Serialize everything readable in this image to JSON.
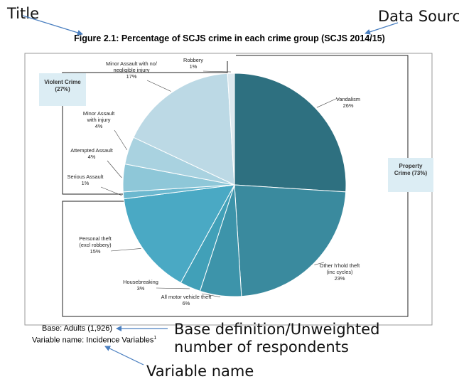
{
  "annotations": {
    "title_label": "Title",
    "data_source_label": "Data Source",
    "base_label_line1": "Base definition/Unweighted",
    "base_label_line2": "number of respondents",
    "variable_label": "Variable name"
  },
  "figure_title": "Figure 2.1: Percentage of SCJS crime in each crime group (SCJS 2014/15)",
  "footer": {
    "base": "Base: Adults (1,926)",
    "variable_name": "Variable name: Incidence Variables",
    "footnote_marker": "1"
  },
  "colors": {
    "annotation_arrow": "#4a7fc0",
    "box_fill": "#dcedf4",
    "frame": "#222222"
  },
  "chart_data": {
    "type": "pie",
    "title": "Figure 2.1: Percentage of SCJS crime in each crime group (SCJS 2014/15)",
    "unit": "%",
    "start": "12 o'clock",
    "direction": "clockwise",
    "slices": [
      {
        "label": [
          "Vandalism"
        ],
        "value": 26,
        "value_label": "26%",
        "color": "#2e7080"
      },
      {
        "label": [
          "Other h'hold theft",
          "(inc cycles)"
        ],
        "value": 23,
        "value_label": "23%",
        "color": "#3a8a9e"
      },
      {
        "label": [
          "All motor vehicle theft"
        ],
        "value": 6,
        "value_label": "6%",
        "color": "#3d94aa"
      },
      {
        "label": [
          "Housebreaking"
        ],
        "value": 3,
        "value_label": "3%",
        "color": "#41a0b8"
      },
      {
        "label": [
          "Personal theft",
          "(excl robbery)"
        ],
        "value": 15,
        "value_label": "15%",
        "color": "#4aa9c4"
      },
      {
        "label": [
          "Serious Assault"
        ],
        "value": 1,
        "value_label": "1%",
        "color": "#6cb8cf"
      },
      {
        "label": [
          "Attempted Assault"
        ],
        "value": 4,
        "value_label": "4%",
        "color": "#8ec7d8"
      },
      {
        "label": [
          "Minor Assault",
          "with injury"
        ],
        "value": 4,
        "value_label": "4%",
        "color": "#a9d2e0"
      },
      {
        "label": [
          "Minor Assault with no/",
          "negligible injury"
        ],
        "value": 17,
        "value_label": "17%",
        "color": "#bcd9e5"
      },
      {
        "label": [
          "Robbery"
        ],
        "value": 1,
        "value_label": "1%",
        "color": "#dde9ef"
      }
    ],
    "groups": [
      {
        "name": "Violent Crime",
        "value_label": "(27%)"
      },
      {
        "name": "Property",
        "value_label": "Crime (73%)"
      }
    ]
  }
}
